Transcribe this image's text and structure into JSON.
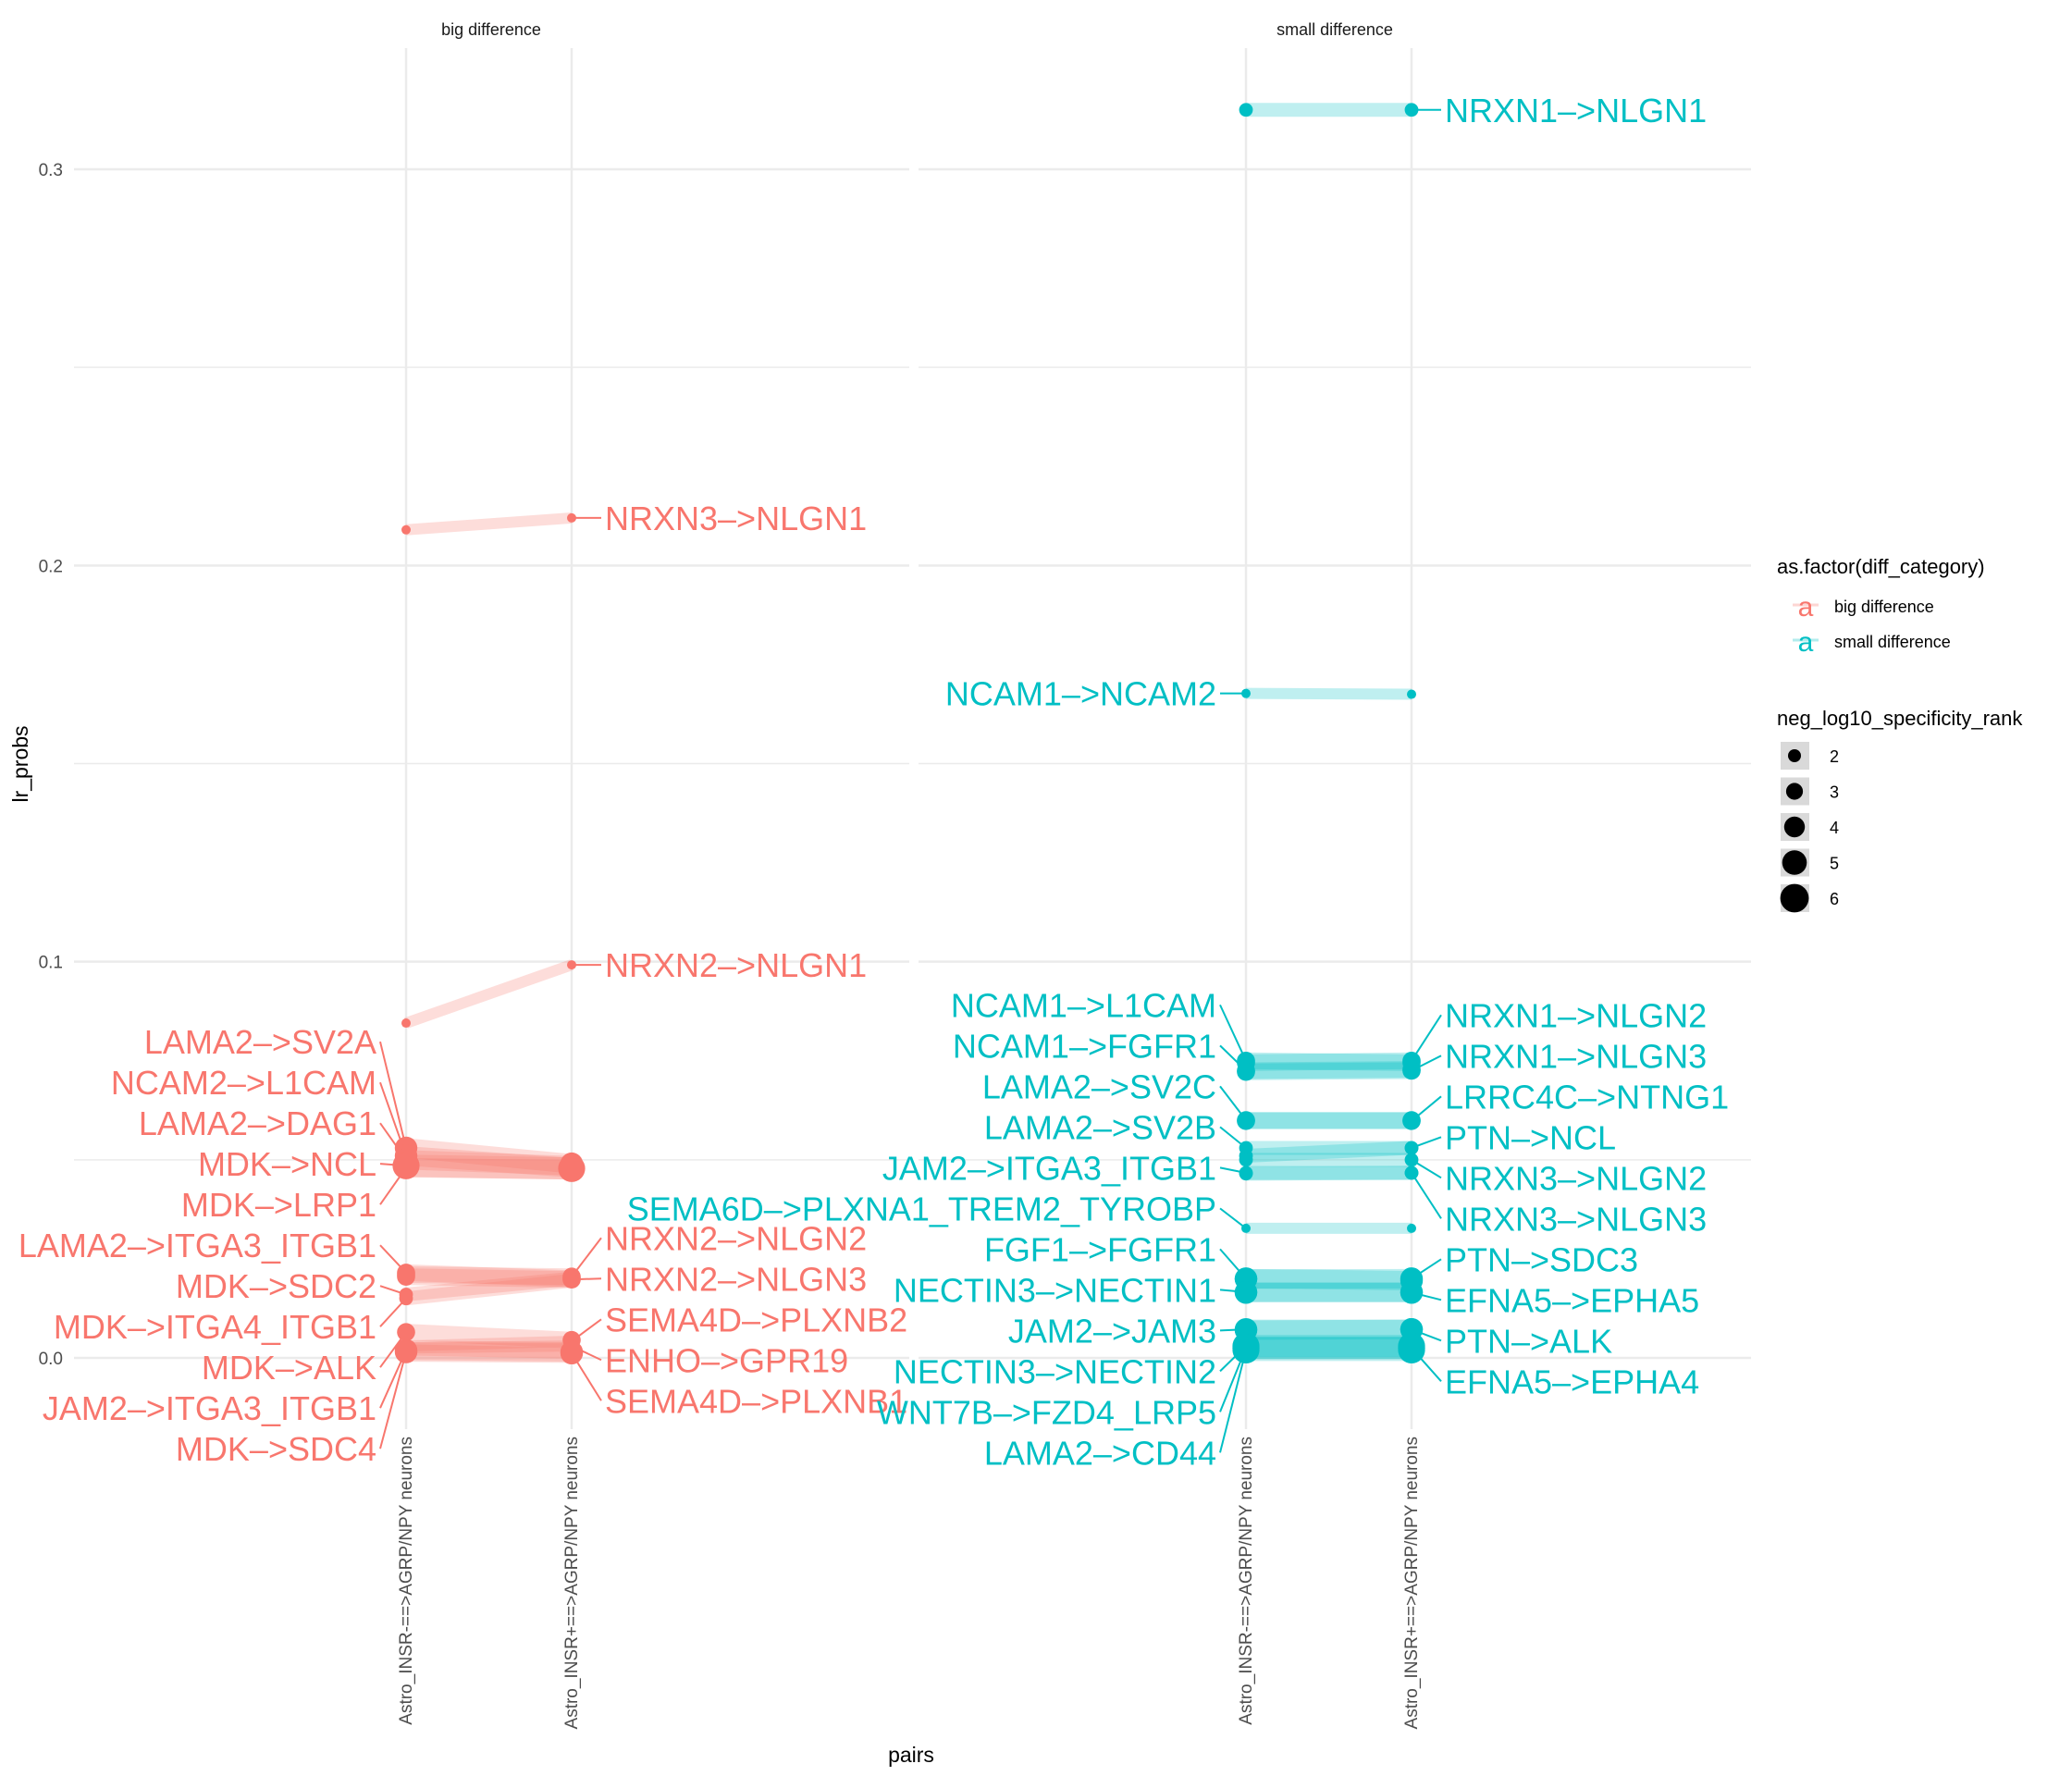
{
  "chart_data": {
    "type": "line",
    "subtype": "dumbbell / slope chart (faceted)",
    "xlabel": "pairs",
    "ylabel": "lr_probs",
    "ylim": [
      -0.015,
      0.33
    ],
    "yticks": [
      0.0,
      0.1,
      0.2,
      0.3
    ],
    "ytick_labels": [
      "0.0",
      "0.1",
      "0.2",
      "0.3"
    ],
    "grid": true,
    "x_categories": [
      "Astro_INSR-==>AGRP/NPY neurons",
      "Astro_INSR+==>AGRP/NPY neurons"
    ],
    "colors": {
      "big difference": "#F8766D",
      "small difference": "#00BFC4"
    },
    "legend": {
      "placement": "right",
      "color_title": "as.factor(diff_category)",
      "color_entries": [
        {
          "label": "big difference",
          "color": "#F8766D",
          "glyph": "a"
        },
        {
          "label": "small difference",
          "color": "#00BFC4",
          "glyph": "a"
        }
      ],
      "size_title": "neg_log10_specificity_rank",
      "size_entries": [
        2,
        3,
        4,
        5,
        6
      ]
    },
    "facets": [
      {
        "name": "big difference",
        "color": "#F8766D",
        "series": [
          {
            "name": "NRXN3->NLGN1",
            "values": [
              0.209,
              0.212
            ],
            "size": 2,
            "label_side": "right"
          },
          {
            "name": "NRXN2->NLGN1",
            "values": [
              0.0845,
              0.0992
            ],
            "size": 2,
            "label_side": "right"
          },
          {
            "name": "LAMA2->SV2A",
            "values": [
              0.053,
              0.049
            ],
            "size": 5,
            "label_side": "left"
          },
          {
            "name": "NCAM2->L1CAM",
            "values": [
              0.051,
              0.048
            ],
            "size": 5,
            "label_side": "left"
          },
          {
            "name": "LAMA2->DAG1",
            "values": [
              0.05,
              0.0485
            ],
            "size": 5,
            "label_side": "left"
          },
          {
            "name": "MDK->NCL",
            "values": [
              0.0485,
              0.0478
            ],
            "size": 6,
            "label_side": "left"
          },
          {
            "name": "MDK->LRP1",
            "values": [
              0.048,
              0.0475
            ],
            "size": 5,
            "label_side": "left"
          },
          {
            "name": "LAMA2->ITGA3_ITGB1",
            "values": [
              0.0215,
              0.02
            ],
            "size": 4,
            "label_side": "left"
          },
          {
            "name": "NRXN2->NLGN2",
            "values": [
              0.021,
              0.0205
            ],
            "size": 4,
            "label_side": "right"
          },
          {
            "name": "NRXN2->NLGN3",
            "values": [
              0.0205,
              0.0198
            ],
            "size": 4,
            "label_side": "right"
          },
          {
            "name": "MDK->SDC2",
            "values": [
              0.016,
              0.02
            ],
            "size": 3,
            "label_side": "left"
          },
          {
            "name": "MDK->ITGA4_ITGB1",
            "values": [
              0.015,
              0.0195
            ],
            "size": 3,
            "label_side": "left"
          },
          {
            "name": "MDK->ALK",
            "values": [
              0.0065,
              0.0045
            ],
            "size": 4,
            "label_side": "left"
          },
          {
            "name": "SEMA4D->PLXNB2",
            "values": [
              0.003,
              0.0042
            ],
            "size": 2,
            "label_side": "right"
          },
          {
            "name": "ENHO->GPR19",
            "values": [
              0.0025,
              0.003
            ],
            "size": 2,
            "label_side": "right"
          },
          {
            "name": "SEMA4D->PLXNB1",
            "values": [
              0.002,
              0.0012
            ],
            "size": 2,
            "label_side": "right"
          },
          {
            "name": "JAM2->ITGA3_ITGB1",
            "values": [
              0.0019,
              0.0015
            ],
            "size": 5,
            "label_side": "left"
          },
          {
            "name": "MDK->SDC4",
            "values": [
              0.0015,
              0.0012
            ],
            "size": 5,
            "label_side": "left"
          }
        ]
      },
      {
        "name": "small difference",
        "color": "#00BFC4",
        "series": [
          {
            "name": "NRXN1->NLGN1",
            "values": [
              0.315,
              0.315
            ],
            "size": 3,
            "label_side": "right"
          },
          {
            "name": "NCAM1->NCAM2",
            "values": [
              0.1677,
              0.1675
            ],
            "size": 2,
            "label_side": "left"
          },
          {
            "name": "NCAM1->L1CAM",
            "values": [
              0.075,
              0.0745
            ],
            "size": 4,
            "label_side": "left"
          },
          {
            "name": "NRXN1->NLGN2",
            "values": [
              0.0745,
              0.075
            ],
            "size": 4,
            "label_side": "right"
          },
          {
            "name": "NCAM1->FGFR1",
            "values": [
              0.0725,
              0.0728
            ],
            "size": 4,
            "label_side": "left"
          },
          {
            "name": "NRXN1->NLGN3",
            "values": [
              0.0722,
              0.0725
            ],
            "size": 4,
            "label_side": "right"
          },
          {
            "name": "LAMA2->SV2C",
            "values": [
              0.06,
              0.06
            ],
            "size": 4,
            "label_side": "left"
          },
          {
            "name": "LRRC4C->NTNG1",
            "values": [
              0.0598,
              0.0598
            ],
            "size": 4,
            "label_side": "right"
          },
          {
            "name": "LAMA2->SV2B",
            "values": [
              0.053,
              0.053
            ],
            "size": 3,
            "label_side": "left"
          },
          {
            "name": "PTN->NCL",
            "values": [
              0.051,
              0.053
            ],
            "size": 3,
            "label_side": "right"
          },
          {
            "name": "NRXN3->NLGN2",
            "values": [
              0.05,
              0.05
            ],
            "size": 3,
            "label_side": "right"
          },
          {
            "name": "JAM2->ITGA3_ITGB1",
            "values": [
              0.0467,
              0.0467
            ],
            "size": 3,
            "label_side": "left"
          },
          {
            "name": "NRXN3->NLGN3",
            "values": [
              0.0465,
              0.0467
            ],
            "size": 3,
            "label_side": "right"
          },
          {
            "name": "SEMA6D->PLXNA1_TREM2_TYROBP",
            "values": [
              0.0327,
              0.0327
            ],
            "size": 2,
            "label_side": "left"
          },
          {
            "name": "FGF1->FGFR1",
            "values": [
              0.02,
              0.0195
            ],
            "size": 5,
            "label_side": "left"
          },
          {
            "name": "PTN->SDC3",
            "values": [
              0.0199,
              0.02
            ],
            "size": 5,
            "label_side": "right"
          },
          {
            "name": "NECTIN3->NECTIN1",
            "values": [
              0.0166,
              0.0166
            ],
            "size": 5,
            "label_side": "left"
          },
          {
            "name": "EFNA5->EPHA5",
            "values": [
              0.0165,
              0.0165
            ],
            "size": 5,
            "label_side": "right"
          },
          {
            "name": "JAM2->JAM3",
            "values": [
              0.0072,
              0.0072
            ],
            "size": 5,
            "label_side": "left"
          },
          {
            "name": "PTN->ALK",
            "values": [
              0.007,
              0.0072
            ],
            "size": 5,
            "label_side": "right"
          },
          {
            "name": "NECTIN3->NECTIN2",
            "values": [
              0.003,
              0.003
            ],
            "size": 6,
            "label_side": "left"
          },
          {
            "name": "EFNA5->EPHA4",
            "values": [
              0.0025,
              0.0025
            ],
            "size": 6,
            "label_side": "right"
          },
          {
            "name": "WNT7B->FZD4_LRP5",
            "values": [
              0.0025,
              0.0025
            ],
            "size": 6,
            "label_side": "left"
          },
          {
            "name": "LAMA2->CD44",
            "values": [
              0.002,
              0.002
            ],
            "size": 6,
            "label_side": "left"
          }
        ]
      }
    ]
  },
  "labels": {
    "x_axis_title": "pairs",
    "y_axis_title": "lr_probs",
    "facet_left": "big difference",
    "facet_right": "small difference"
  }
}
